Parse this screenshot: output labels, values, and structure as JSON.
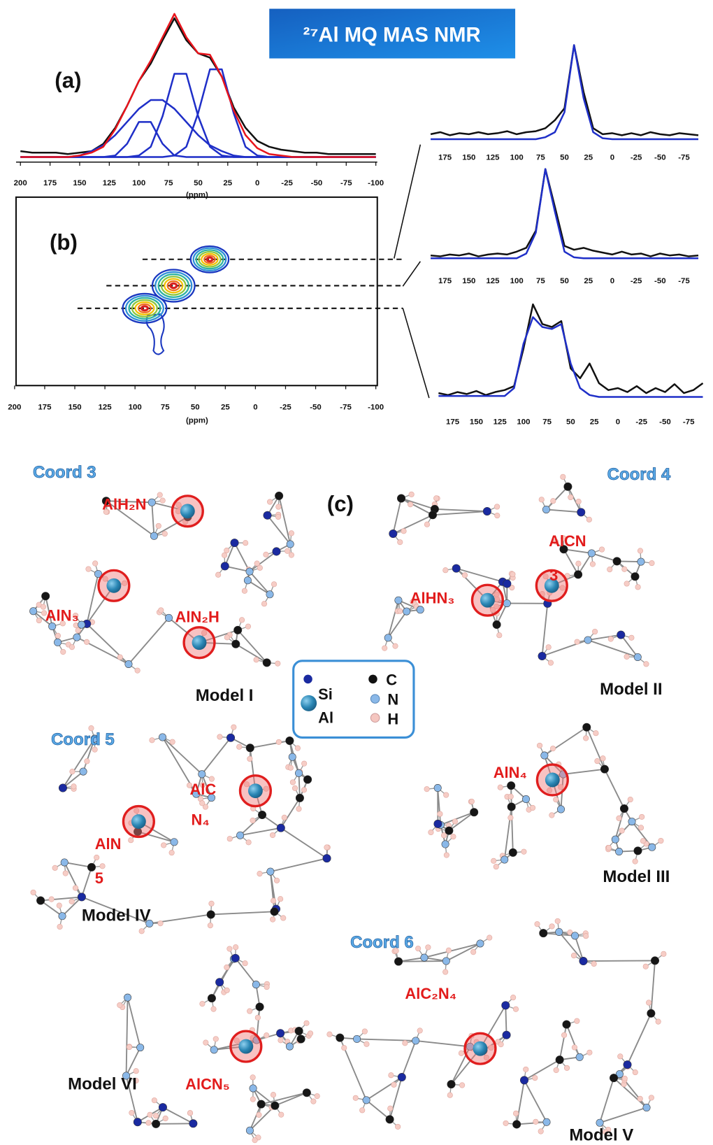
{
  "title": "²⁷Al MQ MAS NMR",
  "chart_data": [
    {
      "type": "line",
      "label": "(a)",
      "xlabel": "(ppm)",
      "x": [
        200,
        190,
        180,
        170,
        160,
        150,
        140,
        130,
        120,
        110,
        100,
        90,
        80,
        70,
        60,
        50,
        40,
        30,
        20,
        10,
        0,
        -10,
        -20,
        -30,
        -40,
        -50,
        -60,
        -70,
        -80,
        -90,
        -100
      ],
      "xlim": [
        200,
        -100
      ],
      "ylim": [
        0,
        100
      ],
      "xticks": [
        200,
        175,
        150,
        125,
        100,
        75,
        50,
        25,
        0,
        -25,
        -50,
        -75,
        -100
      ],
      "series": [
        {
          "color": "#111111",
          "values": [
            4,
            3,
            3,
            3,
            2,
            3,
            4,
            9,
            20,
            35,
            52,
            64,
            80,
            95,
            80,
            71,
            68,
            55,
            34,
            20,
            11,
            7,
            5,
            4,
            3,
            3,
            2,
            2,
            2,
            2,
            2
          ]
        },
        {
          "color": "#1f2fc8",
          "values": [
            0,
            0,
            0,
            0,
            0,
            1,
            4,
            8,
            15,
            24,
            33,
            39,
            39,
            33,
            24,
            15,
            8,
            4,
            1,
            0,
            0,
            0,
            0,
            0,
            0,
            0,
            0,
            0,
            0,
            0,
            0
          ]
        },
        {
          "color": "#1f2fc8",
          "values": [
            0,
            0,
            0,
            0,
            0,
            0,
            0,
            0,
            0,
            0,
            1,
            7,
            28,
            57,
            57,
            28,
            7,
            1,
            0,
            0,
            0,
            0,
            0,
            0,
            0,
            0,
            0,
            0,
            0,
            0,
            0
          ]
        },
        {
          "color": "#1f2fc8",
          "values": [
            0,
            0,
            0,
            0,
            0,
            0,
            0,
            0,
            0,
            0,
            0,
            0,
            0,
            1,
            7,
            30,
            60,
            60,
            30,
            7,
            1,
            0,
            0,
            0,
            0,
            0,
            0,
            0,
            0,
            0,
            0
          ]
        },
        {
          "color": "#1f2fc8",
          "values": [
            0,
            0,
            0,
            0,
            0,
            0,
            0,
            0,
            1,
            9,
            24,
            24,
            9,
            1,
            0,
            0,
            0,
            0,
            0,
            0,
            0,
            0,
            0,
            0,
            0,
            0,
            0,
            0,
            0,
            0,
            0
          ]
        },
        {
          "color": "#e8141c",
          "values": [
            0,
            0,
            0,
            0,
            0,
            1,
            3,
            7,
            19,
            35,
            52,
            66,
            82,
            98,
            82,
            71,
            70,
            55,
            32,
            15,
            6,
            2,
            1,
            0,
            0,
            0,
            0,
            0,
            0,
            0,
            0
          ]
        }
      ]
    },
    {
      "type": "contour",
      "label": "(b)",
      "xlabel": "(ppm)",
      "x": [
        38,
        68,
        92
      ],
      "y": [
        67,
        53,
        41
      ],
      "xlim": [
        200,
        -100
      ],
      "ylim": [
        0,
        100
      ],
      "xticks": [
        200,
        175,
        150,
        125,
        100,
        75,
        50,
        25,
        0,
        -25,
        -50,
        -75,
        -100
      ],
      "colors": [
        "#1a37c0",
        "#2f8fd8",
        "#2fb3a0",
        "#8cc63f",
        "#f2c200",
        "#f07020",
        "#d81e1e"
      ]
    },
    {
      "type": "line",
      "x": [
        190,
        180,
        170,
        160,
        150,
        140,
        130,
        120,
        110,
        100,
        90,
        80,
        70,
        60,
        50,
        40,
        30,
        20,
        10,
        0,
        -10,
        -20,
        -30,
        -40,
        -50,
        -60,
        -70,
        -80,
        -90
      ],
      "xlim": [
        200,
        -100
      ],
      "ylim": [
        0,
        100
      ],
      "xticks": [
        175,
        150,
        125,
        100,
        75,
        50,
        25,
        0,
        -25,
        -50,
        -75
      ],
      "series": [
        {
          "color": "#111111",
          "values": [
            6,
            8,
            5,
            7,
            6,
            8,
            6,
            7,
            9,
            6,
            8,
            9,
            12,
            20,
            32,
            95,
            48,
            12,
            6,
            7,
            5,
            7,
            5,
            8,
            6,
            5,
            7,
            6,
            5
          ]
        },
        {
          "color": "#1f2fc8",
          "values": [
            1,
            1,
            1,
            1,
            1,
            1,
            1,
            1,
            1,
            1,
            1,
            1,
            3,
            8,
            28,
            95,
            42,
            8,
            2,
            1,
            1,
            1,
            1,
            1,
            1,
            1,
            1,
            1,
            1
          ]
        }
      ]
    },
    {
      "type": "line",
      "x": [
        190,
        180,
        170,
        160,
        150,
        140,
        130,
        120,
        110,
        100,
        90,
        80,
        70,
        60,
        50,
        40,
        30,
        20,
        10,
        0,
        -10,
        -20,
        -30,
        -40,
        -50,
        -60,
        -70,
        -80,
        -90
      ],
      "xlim": [
        200,
        -100
      ],
      "ylim": [
        0,
        100
      ],
      "xticks": [
        175,
        150,
        125,
        100,
        75,
        50,
        25,
        0,
        -25,
        -50,
        -75
      ],
      "series": [
        {
          "color": "#111111",
          "values": [
            4,
            3,
            5,
            4,
            6,
            3,
            5,
            6,
            5,
            8,
            12,
            30,
            95,
            55,
            14,
            10,
            12,
            9,
            7,
            5,
            8,
            5,
            6,
            3,
            6,
            4,
            5,
            3,
            4
          ]
        },
        {
          "color": "#1f2fc8",
          "values": [
            1,
            1,
            1,
            1,
            1,
            1,
            1,
            1,
            1,
            1,
            6,
            28,
            95,
            50,
            8,
            2,
            1,
            1,
            1,
            1,
            1,
            1,
            1,
            1,
            1,
            1,
            1,
            1,
            1
          ]
        }
      ]
    },
    {
      "type": "line",
      "x": [
        190,
        180,
        170,
        160,
        150,
        140,
        130,
        120,
        110,
        100,
        90,
        80,
        70,
        60,
        50,
        40,
        30,
        20,
        10,
        0,
        -10,
        -20,
        -30,
        -40,
        -50,
        -60,
        -70,
        -80,
        -90
      ],
      "xlim": [
        200,
        -100
      ],
      "ylim": [
        0,
        100
      ],
      "xticks": [
        175,
        150,
        125,
        100,
        75,
        50,
        25,
        0,
        -25,
        -50,
        -75
      ],
      "series": [
        {
          "color": "#111111",
          "values": [
            5,
            3,
            6,
            4,
            7,
            3,
            6,
            8,
            12,
            50,
            95,
            75,
            72,
            78,
            30,
            20,
            35,
            15,
            8,
            10,
            6,
            12,
            5,
            10,
            6,
            14,
            5,
            8,
            15
          ]
        },
        {
          "color": "#1f2fc8",
          "values": [
            2,
            2,
            2,
            2,
            2,
            2,
            2,
            2,
            10,
            55,
            82,
            72,
            70,
            75,
            35,
            10,
            3,
            1,
            1,
            1,
            1,
            1,
            1,
            1,
            1,
            1,
            1,
            1,
            1
          ]
        }
      ]
    }
  ],
  "panel_c": {
    "label": "(c)",
    "coord_labels": [
      "Coord 3",
      "Coord 4",
      "Coord 5",
      "Coord 6"
    ],
    "models": [
      "Model I",
      "Model II",
      "Model IV",
      "Model III",
      "Model VI",
      "Model V"
    ],
    "site_labels": [
      "AlH₂N",
      "AlN₃",
      "AlN₂H",
      "AlHN₃",
      "AlCN",
      "3",
      "AlC",
      "N₄",
      "AlN",
      "5",
      "AlN₄",
      "AlC₂N₄",
      "AlCN₅"
    ],
    "legend": [
      "Si",
      "Al",
      "C",
      "N",
      "H"
    ]
  }
}
